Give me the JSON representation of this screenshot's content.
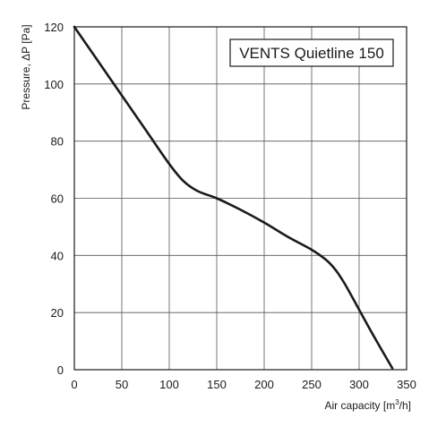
{
  "chart_data": {
    "type": "line",
    "title": "VENTS Quietline 150",
    "xlabel": "Air capacity [m",
    "xlabel_sup": "3",
    "xlabel_suffix": "/h]",
    "ylabel": "Pressure, ΔP [Pa]",
    "xlim": [
      0,
      350
    ],
    "ylim": [
      0,
      120
    ],
    "xticks": [
      0,
      50,
      100,
      150,
      200,
      250,
      300,
      350
    ],
    "yticks": [
      0,
      20,
      40,
      60,
      80,
      100,
      120
    ],
    "grid": true,
    "legend_position": "top-right",
    "series": [
      {
        "name": "VENTS Quietline 150",
        "color": "#1a1a1a",
        "x": [
          0,
          25,
          50,
          75,
          100,
          115,
          130,
          150,
          175,
          200,
          225,
          250,
          265,
          275,
          285,
          300,
          315,
          335
        ],
        "y": [
          120,
          108,
          96,
          84,
          72,
          66,
          62.5,
          60,
          56,
          51.5,
          46.5,
          42,
          38.5,
          35,
          30,
          21,
          12,
          0.5
        ]
      }
    ]
  }
}
